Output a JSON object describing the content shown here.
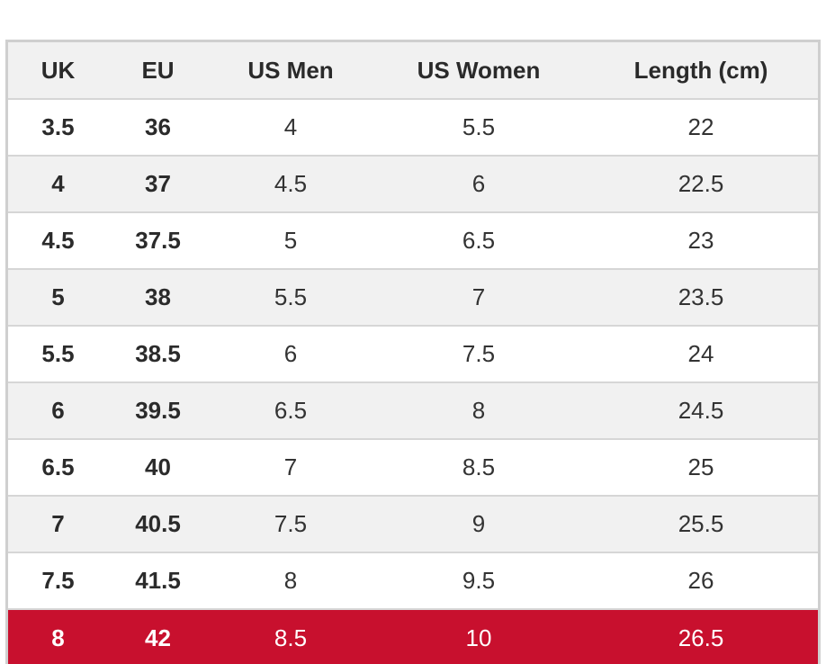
{
  "table": {
    "headers": [
      "UK",
      "EU",
      "US Men",
      "US Women",
      "Length (cm)"
    ],
    "rows": [
      [
        "3.5",
        "36",
        "4",
        "5.5",
        "22"
      ],
      [
        "4",
        "37",
        "4.5",
        "6",
        "22.5"
      ],
      [
        "4.5",
        "37.5",
        "5",
        "6.5",
        "23"
      ],
      [
        "5",
        "38",
        "5.5",
        "7",
        "23.5"
      ],
      [
        "5.5",
        "38.5",
        "6",
        "7.5",
        "24"
      ],
      [
        "6",
        "39.5",
        "6.5",
        "8",
        "24.5"
      ],
      [
        "6.5",
        "40",
        "7",
        "8.5",
        "25"
      ],
      [
        "7",
        "40.5",
        "7.5",
        "9",
        "25.5"
      ],
      [
        "7.5",
        "41.5",
        "8",
        "9.5",
        "26"
      ],
      [
        "8",
        "42",
        "8.5",
        "10",
        "26.5"
      ]
    ],
    "highlighted_row_index": 9,
    "colors": {
      "header_bg": "#f1f1f1",
      "stripe_bg": "#f1f1f1",
      "row_bg": "#ffffff",
      "highlight_bg": "#c8102e",
      "highlight_text": "#ffffff",
      "text": "#2b2b2b",
      "border": "#d6d6d6"
    }
  }
}
